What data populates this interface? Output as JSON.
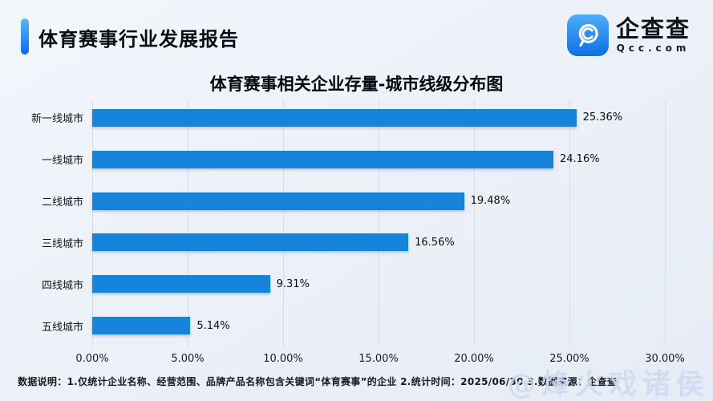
{
  "header": {
    "title": "体育赛事行业发展报告"
  },
  "logo": {
    "brand": "企查查",
    "domain": "Qcc.com"
  },
  "chart_data": {
    "type": "bar",
    "orientation": "horizontal",
    "title": "体育赛事相关企业存量-城市线级分布图",
    "categories": [
      "新一线城市",
      "一线城市",
      "二线城市",
      "三线城市",
      "四线城市",
      "五线城市"
    ],
    "values": [
      25.36,
      24.16,
      19.48,
      16.56,
      9.31,
      5.14
    ],
    "value_labels": [
      "25.36%",
      "24.16%",
      "19.48%",
      "16.56%",
      "9.31%",
      "5.14%"
    ],
    "x_ticks": [
      "0.00%",
      "5.00%",
      "10.00%",
      "15.00%",
      "20.00%",
      "25.00%",
      "30.00%"
    ],
    "xlabel": "",
    "ylabel": "",
    "xlim": [
      0,
      30
    ],
    "grid": true,
    "legend": "none",
    "bar_color": "#1684da"
  },
  "footer": {
    "note": "数据说明：1.仅统计企业名称、经营范围、品牌产品名称包含关键词“体育赛事”的企业  2.统计时间：2025/06/30  3.数据来源：企查查"
  },
  "watermark": {
    "text": "@烽火戏诸侯"
  },
  "colors": {
    "bar": "#1684da",
    "accent_gradient_top": "#5cb4f8",
    "accent_gradient_bottom": "#0a6cf0",
    "background": "#edf1f8",
    "gridline": "#d7dde8"
  }
}
